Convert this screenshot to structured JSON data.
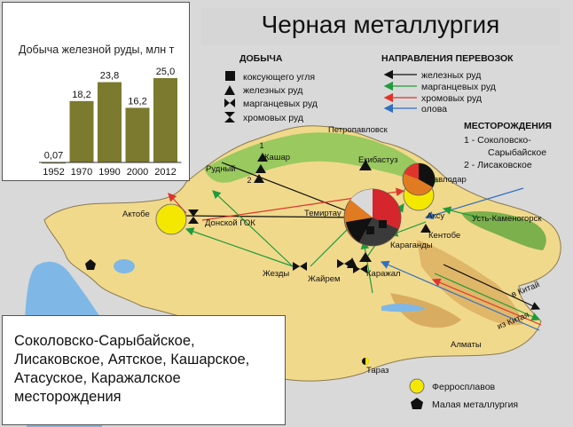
{
  "title": "Черная металлургия",
  "chart_data": {
    "type": "bar",
    "title": "Добыча железной руды, млн т",
    "categories": [
      "1952",
      "1970",
      "1990",
      "2000",
      "2012"
    ],
    "values": [
      0.07,
      18.2,
      23.8,
      16.2,
      25.0
    ],
    "value_labels": [
      "0,07",
      "18,2",
      "23,8",
      "16,2",
      "25,0"
    ],
    "ylim": [
      0,
      25
    ],
    "bar_color": "#7b7a2e"
  },
  "legend_mining": {
    "title": "ДОБЫЧА",
    "items": [
      {
        "label": "коксующего угля",
        "icon": "square-icon"
      },
      {
        "label": "железных руд",
        "icon": "triangle-icon"
      },
      {
        "label": "марганцевых руд",
        "icon": "bowtie-horizontal-icon"
      },
      {
        "label": "хромовых руд",
        "icon": "bowtie-vertical-icon"
      }
    ]
  },
  "legend_transport": {
    "title": "НАПРАВЛЕНИЯ ПЕРЕВОЗОК",
    "items": [
      {
        "label": "железных руд",
        "color": "#111111"
      },
      {
        "label": "марганцевых руд",
        "color": "#1f9b3c"
      },
      {
        "label": "хромовых руд",
        "color": "#e0342b"
      },
      {
        "label": "олова",
        "color": "#2f6fc0"
      }
    ]
  },
  "legend_deposits": {
    "title": "МЕСТОРОЖДЕНИЯ",
    "line1": "1 - Соколовско-",
    "line2": "Сарыбайское",
    "line3": "2 - Лисаковское"
  },
  "legend_bottom": {
    "ferroalloy": "Ферросплавов",
    "small_metallurgy": "Малая металлургия"
  },
  "deposits_box": "Соколовско-Сарыбайское, Лисаковское, Аятское, Кашарское, Атасуское, Каражалское месторождения",
  "cities": {
    "petropavlovsk": "Петропавловск",
    "kashar": "Кашар",
    "rudny": "Рудный",
    "ekibastuz": "Екибастуз",
    "pavlodar": "Павлодар",
    "aktobe": "Актобе",
    "donskoy": "Донской ГОК",
    "temirtau": "Темиртау",
    "aksu": "Аксу",
    "ust_kamenogorsk": "Усть-Каменогорск",
    "kentobe": "Кентобе",
    "karaganda": "Караганды",
    "zhezdy": "Жезды",
    "zhairem": "Жайрем",
    "karazhal": "Каражал",
    "to_china": "в Китай",
    "from_china": "из Китая",
    "almaty": "Алматы",
    "taraz": "Тараз"
  },
  "marker_numbers": {
    "n1": "1",
    "n2": "2"
  }
}
